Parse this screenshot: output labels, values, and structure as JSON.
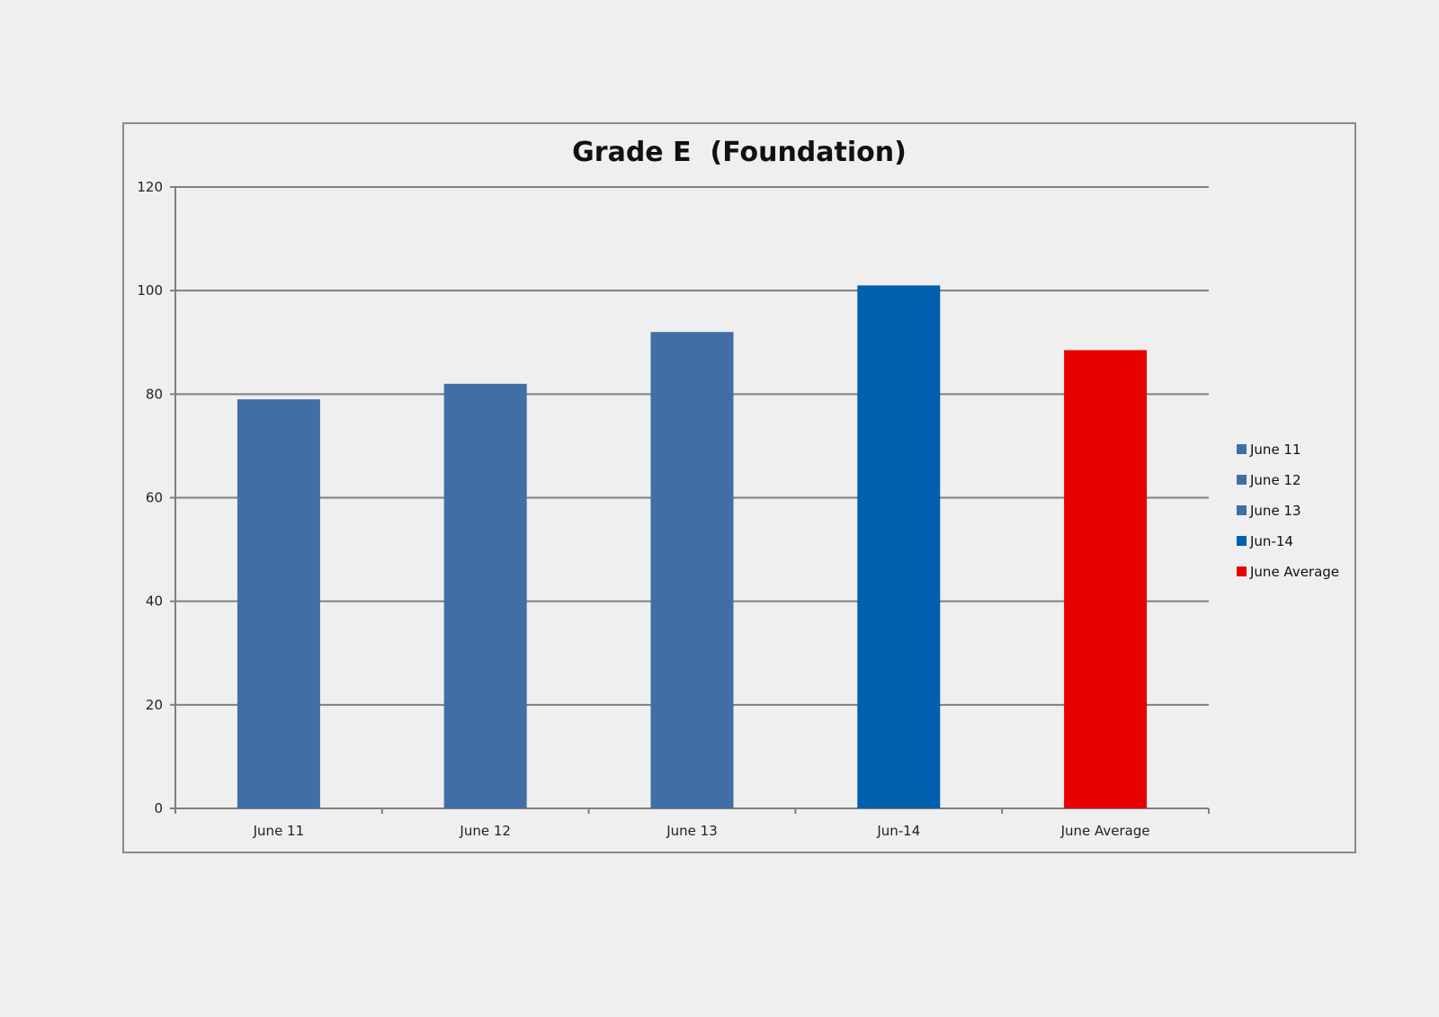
{
  "chart_data": {
    "type": "bar",
    "title": "Grade E  (Foundation)",
    "xlabel": "",
    "ylabel": "",
    "categories": [
      "June 11",
      "June 12",
      "June 13",
      "Jun-14",
      "June Average"
    ],
    "values": [
      79,
      82,
      92,
      101,
      88.5
    ],
    "colors": [
      "#416ea6",
      "#416ea6",
      "#416ea6",
      "#0060ae",
      "#e80000"
    ],
    "ylim": [
      0,
      120
    ],
    "yticks": [
      0,
      20,
      40,
      60,
      80,
      100,
      120
    ],
    "grid": true,
    "legend": {
      "position": "right",
      "entries": [
        {
          "label": "June 11",
          "color": "#416ea6"
        },
        {
          "label": "June 12",
          "color": "#416ea6"
        },
        {
          "label": "June 13",
          "color": "#416ea6"
        },
        {
          "label": "Jun-14",
          "color": "#0060ae"
        },
        {
          "label": "June Average",
          "color": "#e80000"
        }
      ]
    }
  }
}
